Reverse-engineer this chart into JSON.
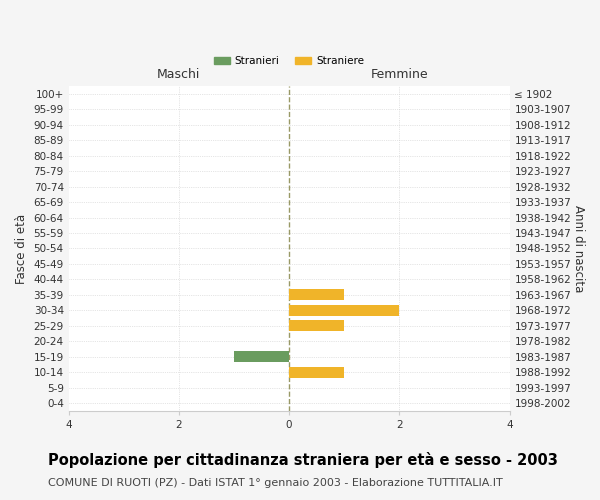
{
  "age_groups": [
    "0-4",
    "5-9",
    "10-14",
    "15-19",
    "20-24",
    "25-29",
    "30-34",
    "35-39",
    "40-44",
    "45-49",
    "50-54",
    "55-59",
    "60-64",
    "65-69",
    "70-74",
    "75-79",
    "80-84",
    "85-89",
    "90-94",
    "95-99",
    "100+"
  ],
  "birth_years": [
    "1998-2002",
    "1993-1997",
    "1988-1992",
    "1983-1987",
    "1978-1982",
    "1973-1977",
    "1968-1972",
    "1963-1967",
    "1958-1962",
    "1953-1957",
    "1948-1952",
    "1943-1947",
    "1938-1942",
    "1933-1937",
    "1928-1932",
    "1923-1927",
    "1918-1922",
    "1913-1917",
    "1908-1912",
    "1903-1907",
    "≤ 1902"
  ],
  "males": [
    0,
    0,
    0,
    1,
    0,
    0,
    0,
    0,
    0,
    0,
    0,
    0,
    0,
    0,
    0,
    0,
    0,
    0,
    0,
    0,
    0
  ],
  "females": [
    0,
    0,
    1,
    0,
    0,
    1,
    2,
    1,
    0,
    0,
    0,
    0,
    0,
    0,
    0,
    0,
    0,
    0,
    0,
    0,
    0
  ],
  "male_color": "#6a9c5f",
  "female_color": "#f0b429",
  "xlim": 4,
  "xticks": [
    -4,
    -2,
    0,
    2,
    4
  ],
  "xticklabels": [
    "4",
    "2",
    "0",
    "2",
    "4"
  ],
  "title": "Popolazione per cittadinanza straniera per età e sesso - 2003",
  "subtitle": "COMUNE DI RUOTI (PZ) - Dati ISTAT 1° gennaio 2003 - Elaborazione TUTTITALIA.IT",
  "ylabel_left": "Fasce di età",
  "ylabel_right": "Anni di nascita",
  "header_left": "Maschi",
  "header_right": "Femmine",
  "legend_stranieri": "Stranieri",
  "legend_straniere": "Straniere",
  "bg_color": "#f5f5f5",
  "plot_bg_color": "#ffffff",
  "grid_color": "#cccccc",
  "zeroline_color": "#999966",
  "bar_height": 0.7,
  "title_fontsize": 10.5,
  "subtitle_fontsize": 8,
  "tick_fontsize": 7.5,
  "label_fontsize": 8.5,
  "header_fontsize": 9
}
